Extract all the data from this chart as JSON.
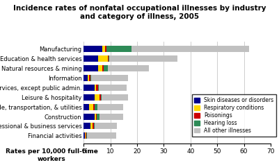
{
  "title": "Incidence rates of nonfatal occupational illnesses by industry\nand category of illness, 2005",
  "xlabel": "Rates per 10,000 full-time\nworkers",
  "categories": [
    "Financial activities",
    "Professional & business services",
    "Construction",
    "Trade, transportation, & utilities",
    "Leisure & hospitality",
    "Other services, except public admin.",
    "Information",
    "Natural resources & mining",
    "Education & health services",
    "Manufacturing"
  ],
  "skin": [
    0.5,
    2.5,
    4.0,
    2.0,
    4.0,
    4.0,
    1.5,
    5.5,
    5.5,
    7.0
  ],
  "respiratory": [
    0.3,
    0.8,
    0.5,
    1.5,
    2.0,
    0.5,
    0.5,
    1.5,
    3.5,
    1.0
  ],
  "poisonings": [
    0.2,
    0.5,
    0.5,
    0.5,
    0.5,
    1.0,
    0.5,
    0.5,
    0.3,
    0.5
  ],
  "hearing": [
    0.1,
    0.2,
    0.8,
    1.2,
    0.2,
    0.2,
    0.2,
    1.5,
    0.2,
    9.5
  ],
  "other": [
    11.0,
    8.5,
    9.0,
    9.5,
    10.0,
    10.5,
    14.0,
    15.5,
    25.5,
    44.0
  ],
  "colors": {
    "skin": "#00008B",
    "respiratory": "#FFD700",
    "poisonings": "#CC0000",
    "hearing": "#2E8B57",
    "other": "#C0C0C0"
  },
  "legend_labels": [
    "Skin diseases or disorders",
    "Respiratory conditions",
    "Poisonings",
    "Hearing loss",
    "All other illnesses"
  ],
  "xlim": [
    0,
    70
  ],
  "xticks": [
    0,
    10,
    20,
    30,
    40,
    50,
    60,
    70
  ],
  "background_color": "#ffffff"
}
